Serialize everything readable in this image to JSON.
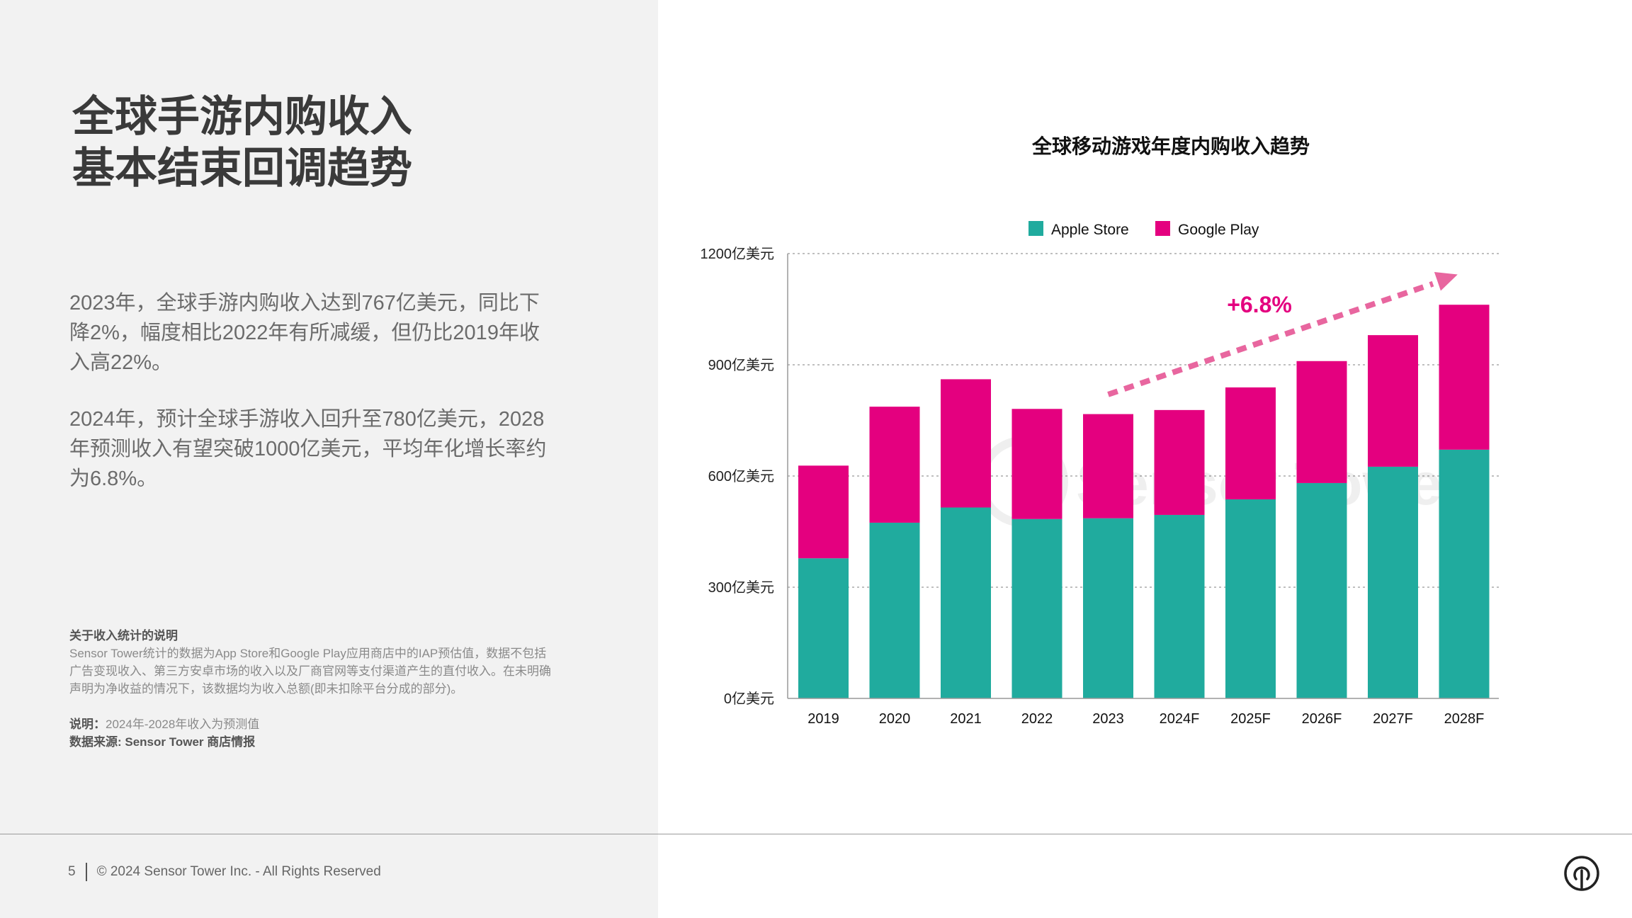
{
  "page": {
    "title_lines": [
      "全球手游内购收入",
      "基本结束回调趋势"
    ],
    "paragraphs": [
      "2023年，全球手游内购收入达到767亿美元，同比下降2%，幅度相比2022年有所减缓，但仍比2019年收入高22%。",
      "2024年，预计全球手游收入回升至780亿美元，2028年预测收入有望突破1000亿美元，平均年化增长率约为6.8%。"
    ],
    "notes": {
      "heading": "关于收入统计的说明",
      "body": "Sensor Tower统计的数据为App Store和Google Play应用商店中的IAP预估值，数据不包括广告变现收入、第三方安卓市场的收入以及厂商官网等支付渠道产生的直付收入。在未明确声明为净收益的情况下，该数据均为收入总额(即未扣除平台分成的部分)。",
      "remark_label": "说明：",
      "remark_text": "2024年-2028年收入为预测值",
      "source": "数据来源: Sensor Tower 商店情报"
    },
    "footer": {
      "page_number": "5",
      "copyright": "© 2024 Sensor Tower Inc. - All Rights Reserved"
    },
    "watermark": "Sensor Tower",
    "logo_icon": "sensor-tower-logo"
  },
  "chart_data": {
    "type": "bar",
    "stacked": true,
    "title": "全球移动游戏年度内购收入趋势",
    "categories": [
      "2019",
      "2020",
      "2021",
      "2022",
      "2023",
      "2024F",
      "2025F",
      "2026F",
      "2027F",
      "2028F"
    ],
    "series": [
      {
        "name": "Apple Store",
        "color": "#20ab9e",
        "values": [
          378,
          474,
          515,
          484,
          486,
          495,
          537,
          581,
          625,
          671
        ]
      },
      {
        "name": "Google Play",
        "color": "#e4007f",
        "values": [
          250,
          313,
          346,
          297,
          281,
          283,
          302,
          329,
          355,
          391
        ]
      }
    ],
    "yticks": [
      0,
      300,
      600,
      900,
      1200
    ],
    "ytick_labels": [
      "0亿美元",
      "300亿美元",
      "600亿美元",
      "900亿美元",
      "1200亿美元"
    ],
    "ylim": [
      0,
      1200
    ],
    "grid": true,
    "legend": "top",
    "annotation": {
      "text": "+6.8%",
      "color": "#e4007f",
      "arrow_color": "#e8669f",
      "from": [
        "2023",
        820
      ],
      "to": [
        "2028F",
        1130
      ]
    }
  }
}
